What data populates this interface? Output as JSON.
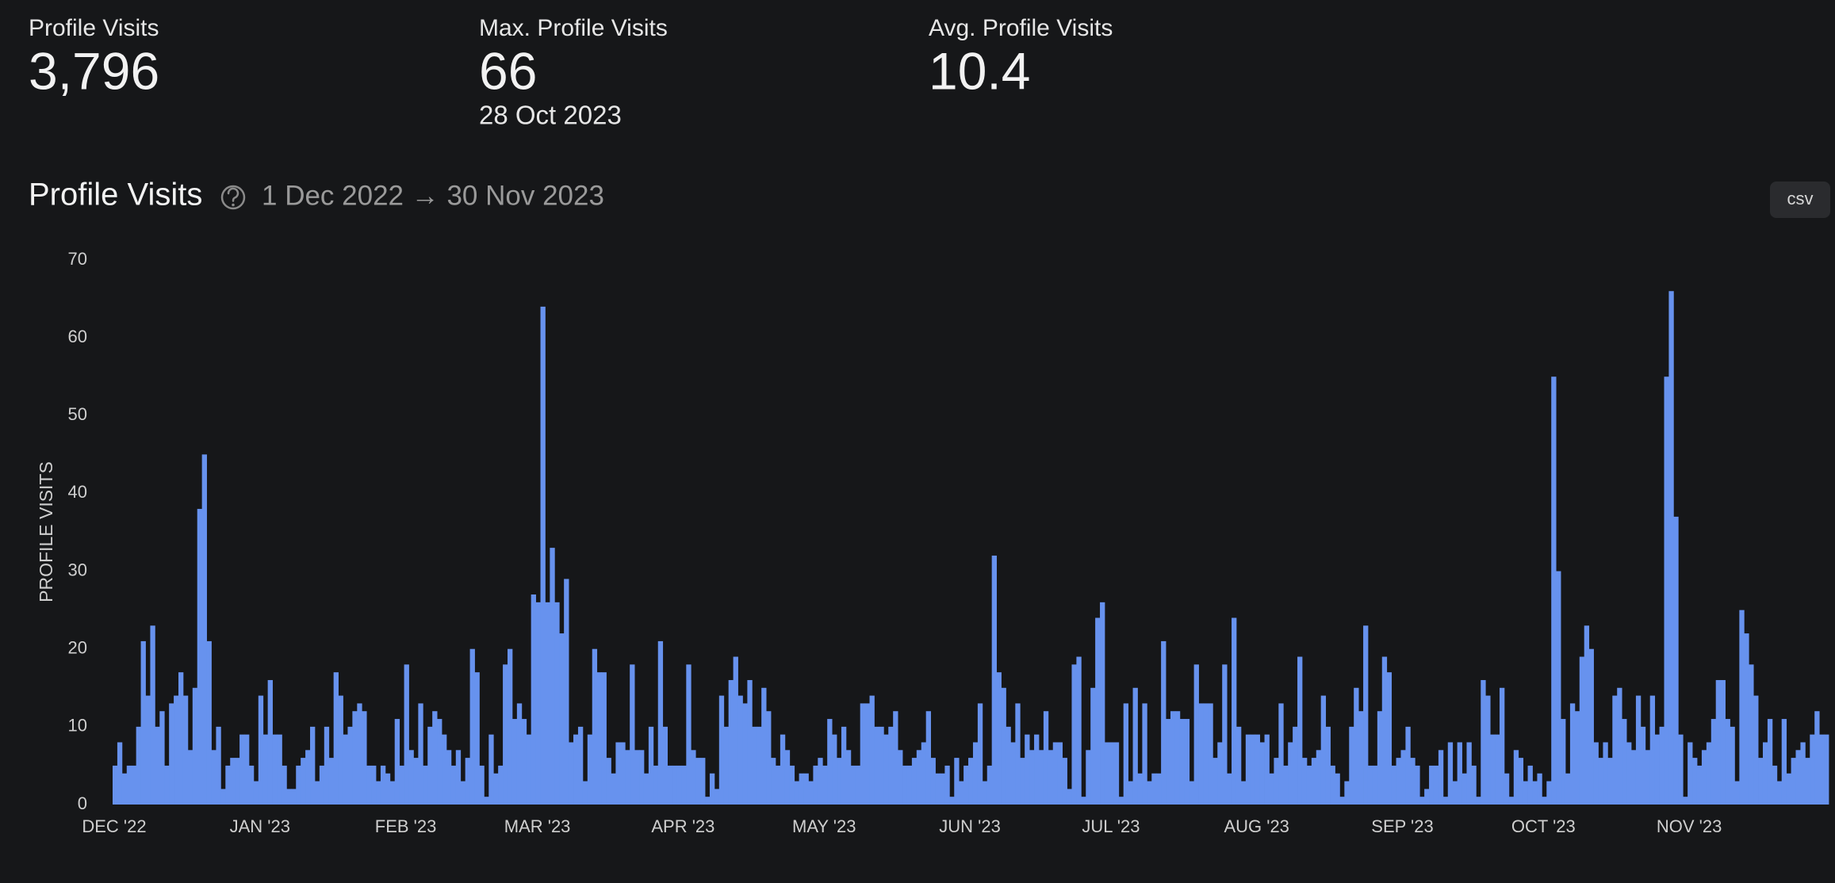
{
  "stats": [
    {
      "label": "Profile Visits",
      "value": "3,796"
    },
    {
      "label": "Max. Profile Visits",
      "value": "66",
      "sub": "28 Oct 2023"
    },
    {
      "label": "Avg. Profile Visits",
      "value": "10.4"
    }
  ],
  "chart_data": {
    "type": "bar",
    "title": "Profile Visits",
    "subtitle": "1 Dec 2022 → 30 Nov 2023",
    "button": "csv",
    "y_label": "PROFILE VISITS",
    "color": "#6792ee",
    "ylim": [
      0,
      70
    ],
    "yticks": [
      0,
      10,
      20,
      30,
      40,
      50,
      60,
      70
    ],
    "grid": false,
    "categories": [
      "DEC '22",
      null,
      null,
      null,
      null,
      null,
      null,
      null,
      null,
      null,
      null,
      null,
      null,
      null,
      null,
      null,
      null,
      null,
      null,
      null,
      null,
      null,
      null,
      null,
      null,
      null,
      null,
      null,
      null,
      null,
      null,
      "JAN '23",
      null,
      null,
      null,
      null,
      null,
      null,
      null,
      null,
      null,
      null,
      null,
      null,
      null,
      null,
      null,
      null,
      null,
      null,
      null,
      null,
      null,
      null,
      null,
      null,
      null,
      null,
      null,
      null,
      null,
      null,
      "FEB '23",
      null,
      null,
      null,
      null,
      null,
      null,
      null,
      null,
      null,
      null,
      null,
      null,
      null,
      null,
      null,
      null,
      null,
      null,
      null,
      null,
      null,
      null,
      null,
      null,
      null,
      null,
      null,
      "MAR '23",
      null,
      null,
      null,
      null,
      null,
      null,
      null,
      null,
      null,
      null,
      null,
      null,
      null,
      null,
      null,
      null,
      null,
      null,
      null,
      null,
      null,
      null,
      null,
      null,
      null,
      null,
      null,
      null,
      null,
      null,
      "APR '23",
      null,
      null,
      null,
      null,
      null,
      null,
      null,
      null,
      null,
      null,
      null,
      null,
      null,
      null,
      null,
      null,
      null,
      null,
      null,
      null,
      null,
      null,
      null,
      null,
      null,
      null,
      null,
      null,
      null,
      "MAY '23",
      null,
      null,
      null,
      null,
      null,
      null,
      null,
      null,
      null,
      null,
      null,
      null,
      null,
      null,
      null,
      null,
      null,
      null,
      null,
      null,
      null,
      null,
      null,
      null,
      null,
      null,
      null,
      null,
      null,
      null,
      "JUN '23",
      null,
      null,
      null,
      null,
      null,
      null,
      null,
      null,
      null,
      null,
      null,
      null,
      null,
      null,
      null,
      null,
      null,
      null,
      null,
      null,
      null,
      null,
      null,
      null,
      null,
      null,
      null,
      null,
      null,
      "JUL '23",
      null,
      null,
      null,
      null,
      null,
      null,
      null,
      null,
      null,
      null,
      null,
      null,
      null,
      null,
      null,
      null,
      null,
      null,
      null,
      null,
      null,
      null,
      null,
      null,
      null,
      null,
      null,
      null,
      null,
      null,
      "AUG '23",
      null,
      null,
      null,
      null,
      null,
      null,
      null,
      null,
      null,
      null,
      null,
      null,
      null,
      null,
      null,
      null,
      null,
      null,
      null,
      null,
      null,
      null,
      null,
      null,
      null,
      null,
      null,
      null,
      null,
      null,
      "SEP '23",
      null,
      null,
      null,
      null,
      null,
      null,
      null,
      null,
      null,
      null,
      null,
      null,
      null,
      null,
      null,
      null,
      null,
      null,
      null,
      null,
      null,
      null,
      null,
      null,
      null,
      null,
      null,
      null,
      null,
      "OCT '23",
      null,
      null,
      null,
      null,
      null,
      null,
      null,
      null,
      null,
      null,
      null,
      null,
      null,
      null,
      null,
      null,
      null,
      null,
      null,
      null,
      null,
      null,
      null,
      null,
      null,
      null,
      null,
      null,
      null,
      null,
      "NOV '23",
      null,
      null,
      null,
      null,
      null,
      null,
      null,
      null,
      null,
      null,
      null,
      null,
      null,
      null,
      null,
      null,
      null,
      null,
      null,
      null,
      null,
      null,
      null,
      null,
      null,
      null,
      null,
      null,
      null
    ],
    "values": [
      5,
      8,
      4,
      5,
      5,
      10,
      21,
      14,
      23,
      10,
      12,
      5,
      13,
      14,
      17,
      14,
      7,
      15,
      38,
      45,
      21,
      7,
      10,
      2,
      5,
      6,
      6,
      9,
      9,
      5,
      3,
      14,
      9,
      16,
      9,
      9,
      5,
      2,
      2,
      5,
      6,
      7,
      10,
      3,
      5,
      10,
      6,
      17,
      14,
      9,
      10,
      12,
      13,
      12,
      5,
      5,
      3,
      5,
      4,
      3,
      11,
      5,
      18,
      7,
      6,
      13,
      5,
      10,
      12,
      11,
      9,
      7,
      5,
      7,
      3,
      6,
      20,
      17,
      5,
      1,
      9,
      4,
      5,
      18,
      20,
      11,
      13,
      11,
      9,
      27,
      26,
      64,
      26,
      33,
      26,
      22,
      29,
      8,
      9,
      10,
      3,
      9,
      20,
      17,
      17,
      6,
      4,
      8,
      8,
      7,
      18,
      7,
      7,
      4,
      10,
      5,
      21,
      10,
      5,
      5,
      5,
      5,
      18,
      7,
      6,
      6,
      1,
      4,
      2,
      14,
      10,
      16,
      19,
      14,
      13,
      16,
      10,
      10,
      15,
      12,
      6,
      5,
      9,
      7,
      5,
      3,
      4,
      4,
      3,
      5,
      6,
      5,
      11,
      9,
      6,
      10,
      7,
      5,
      5,
      13,
      13,
      14,
      10,
      10,
      9,
      10,
      12,
      7,
      5,
      5,
      6,
      7,
      8,
      12,
      6,
      4,
      4,
      5,
      1,
      6,
      3,
      5,
      6,
      8,
      13,
      3,
      5,
      32,
      17,
      15,
      10,
      8,
      13,
      6,
      9,
      7,
      9,
      7,
      12,
      7,
      8,
      8,
      6,
      2,
      18,
      19,
      1,
      7,
      15,
      24,
      26,
      8,
      8,
      8,
      1,
      13,
      3,
      15,
      4,
      13,
      3,
      4,
      4,
      21,
      11,
      12,
      12,
      11,
      11,
      3,
      18,
      13,
      13,
      13,
      6,
      8,
      18,
      4,
      24,
      10,
      3,
      9,
      9,
      9,
      8,
      9,
      4,
      6,
      13,
      5,
      8,
      10,
      19,
      6,
      5,
      6,
      7,
      14,
      10,
      5,
      4,
      1,
      3,
      10,
      15,
      12,
      23,
      5,
      5,
      12,
      19,
      17,
      5,
      6,
      7,
      10,
      6,
      5,
      1,
      2,
      5,
      5,
      7,
      1,
      8,
      3,
      8,
      4,
      8,
      5,
      1,
      16,
      14,
      9,
      9,
      15,
      4,
      1,
      7,
      6,
      3,
      5,
      3,
      4,
      1,
      3,
      55,
      30,
      11,
      4,
      13,
      12,
      19,
      23,
      20,
      8,
      6,
      8,
      6,
      14,
      15,
      11,
      8,
      7,
      14,
      10,
      7,
      14,
      9,
      10,
      55,
      66,
      37,
      9,
      1,
      8,
      6,
      5,
      7,
      8,
      11,
      16,
      16,
      11,
      10,
      3,
      25,
      22,
      18,
      14,
      6,
      8,
      11,
      5,
      3,
      11,
      4,
      6,
      7,
      8,
      6,
      9,
      12,
      9,
      9
    ]
  }
}
